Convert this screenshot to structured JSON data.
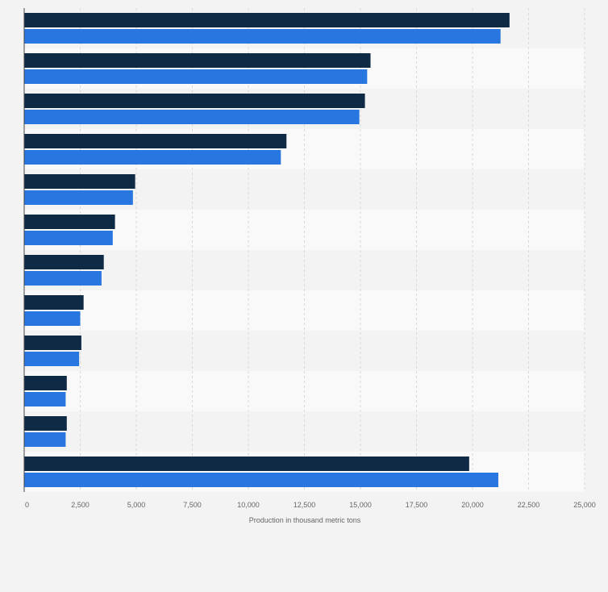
{
  "chart_data": {
    "type": "bar",
    "orientation": "horizontal",
    "title": "",
    "xlabel": "Production in thousand metric tons",
    "ylabel": "",
    "categories": [
      "",
      "",
      "",
      "",
      "",
      "",
      "",
      "",
      "",
      "",
      "",
      ""
    ],
    "series": [
      {
        "values": [
          21650,
          15450,
          15200,
          11700,
          4950,
          4050,
          3550,
          2650,
          2550,
          1900,
          1900,
          19850
        ]
      },
      {
        "values": [
          21250,
          15300,
          14950,
          11450,
          4850,
          3950,
          3450,
          2500,
          2450,
          1850,
          1850,
          21150
        ]
      }
    ],
    "xlim": [
      0,
      25000
    ],
    "xticks": [
      "0",
      "2,500",
      "5,000",
      "7,500",
      "10,000",
      "12,500",
      "15,000",
      "17,500",
      "20,000",
      "22,500",
      "25,000"
    ],
    "grid": true,
    "legend": "none",
    "colors": {
      "series_1": "#0f2a45",
      "series_2": "#2877e0",
      "band_a": "#f3f3f3",
      "band_b": "#f9f9f9",
      "grid": "#d9d9d9",
      "axis": "#444444",
      "tick_text": "#666666"
    }
  }
}
